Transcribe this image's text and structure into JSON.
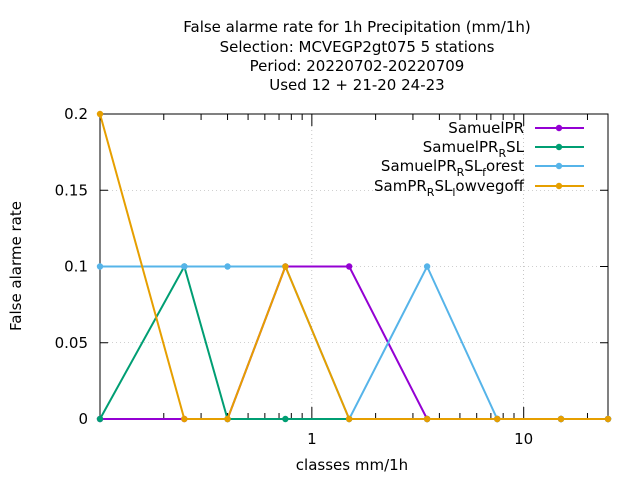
{
  "chart_data": {
    "type": "line",
    "title_lines": [
      "False alarme rate  for 1h Precipitation (mm/1h)",
      "Selection: MCVEGP2gt075      5 stations",
      "Period: 20220702-20220709",
      "Used  12 + 21-20 24-23"
    ],
    "xlabel": "classes mm/1h",
    "ylabel": "False alarme rate",
    "x_scale": "log",
    "xlim": [
      0.1,
      25
    ],
    "ylim": [
      0,
      0.2
    ],
    "grid": true,
    "legend_position": "top-right",
    "x_ticks": [
      {
        "value": 1,
        "label": "1"
      },
      {
        "value": 10,
        "label": "10"
      }
    ],
    "y_ticks": [
      {
        "value": 0,
        "label": "0"
      },
      {
        "value": 0.05,
        "label": "0.05"
      },
      {
        "value": 0.1,
        "label": "0.1"
      },
      {
        "value": 0.15,
        "label": "0.15"
      },
      {
        "value": 0.2,
        "label": "0.2"
      }
    ],
    "x": [
      0.1,
      0.25,
      0.4,
      0.75,
      1.5,
      3.5,
      7.5,
      15,
      25
    ],
    "series": [
      {
        "name_base": "SamuelPR",
        "name_sub": "",
        "name_rest": "",
        "color": "#9400d3",
        "values": [
          0,
          0,
          0,
          0.1,
          0.1,
          0,
          0,
          0,
          0
        ]
      },
      {
        "name_base": "SamuelPR",
        "name_sub": "R",
        "name_rest": "SL",
        "color": "#009e73",
        "values": [
          0,
          0.1,
          0,
          0,
          0,
          0,
          0,
          0,
          0
        ]
      },
      {
        "name_base": "SamuelPR",
        "name_sub": "R",
        "name_rest": "SL",
        "name_sub2": "f",
        "name_rest2": "orest",
        "color": "#56b4e9",
        "values": [
          0.1,
          0.1,
          0.1,
          0.1,
          0,
          0.1,
          0,
          0,
          0
        ]
      },
      {
        "name_base": "SamPR",
        "name_sub": "R",
        "name_rest": "SL",
        "name_sub2": "l",
        "name_rest2": "owvegoff",
        "color": "#e69f00",
        "values": [
          0.2,
          0,
          0,
          0.1,
          0,
          0,
          0,
          0,
          0
        ]
      }
    ]
  }
}
